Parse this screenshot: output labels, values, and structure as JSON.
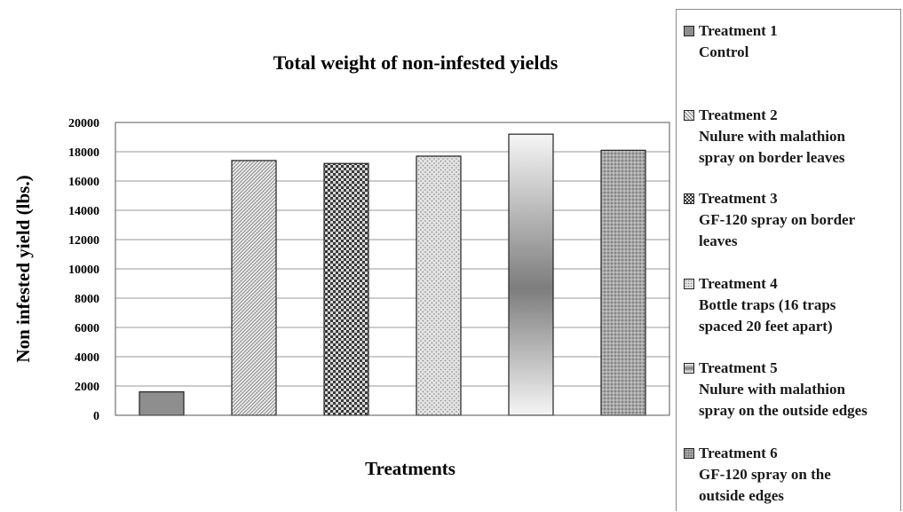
{
  "chart_data": {
    "type": "bar",
    "title": "Total weight of non-infested yields",
    "xlabel": "Treatments",
    "ylabel": "Non infested yield (lbs.)",
    "ylim": [
      0,
      20000
    ],
    "yticks": [
      "0",
      "2000",
      "4000",
      "6000",
      "8000",
      "10000",
      "12000",
      "14000",
      "16000",
      "18000",
      "20000"
    ],
    "grid": true,
    "legend_position": "right",
    "categories": [
      "Treatment 1",
      "Treatment 2",
      "Treatment 3",
      "Treatment 4",
      "Treatment 5",
      "Treatment 6"
    ],
    "values": [
      1600,
      17400,
      17200,
      17700,
      19200,
      18100
    ]
  },
  "legend": [
    {
      "name": "Treatment 1",
      "desc": [
        "Control"
      ],
      "pattern": "solid-gray"
    },
    {
      "name": "Treatment 2",
      "desc": [
        "Nulure with malathion",
        "spray on border leaves"
      ],
      "pattern": "diagonal-hatch"
    },
    {
      "name": "Treatment 3",
      "desc": [
        "GF-120 spray on border",
        "leaves"
      ],
      "pattern": "checkerboard"
    },
    {
      "name": "Treatment 4",
      "desc": [
        "Bottle traps (16 traps",
        "spaced 20 feet apart)"
      ],
      "pattern": "fine-dots"
    },
    {
      "name": "Treatment 5",
      "desc": [
        "Nulure with malathion",
        "spray on the outside edges"
      ],
      "pattern": "vertical-gradient"
    },
    {
      "name": "Treatment 6",
      "desc": [
        "GF-120 spray on the",
        "outside edges"
      ],
      "pattern": "dense-dots"
    }
  ]
}
